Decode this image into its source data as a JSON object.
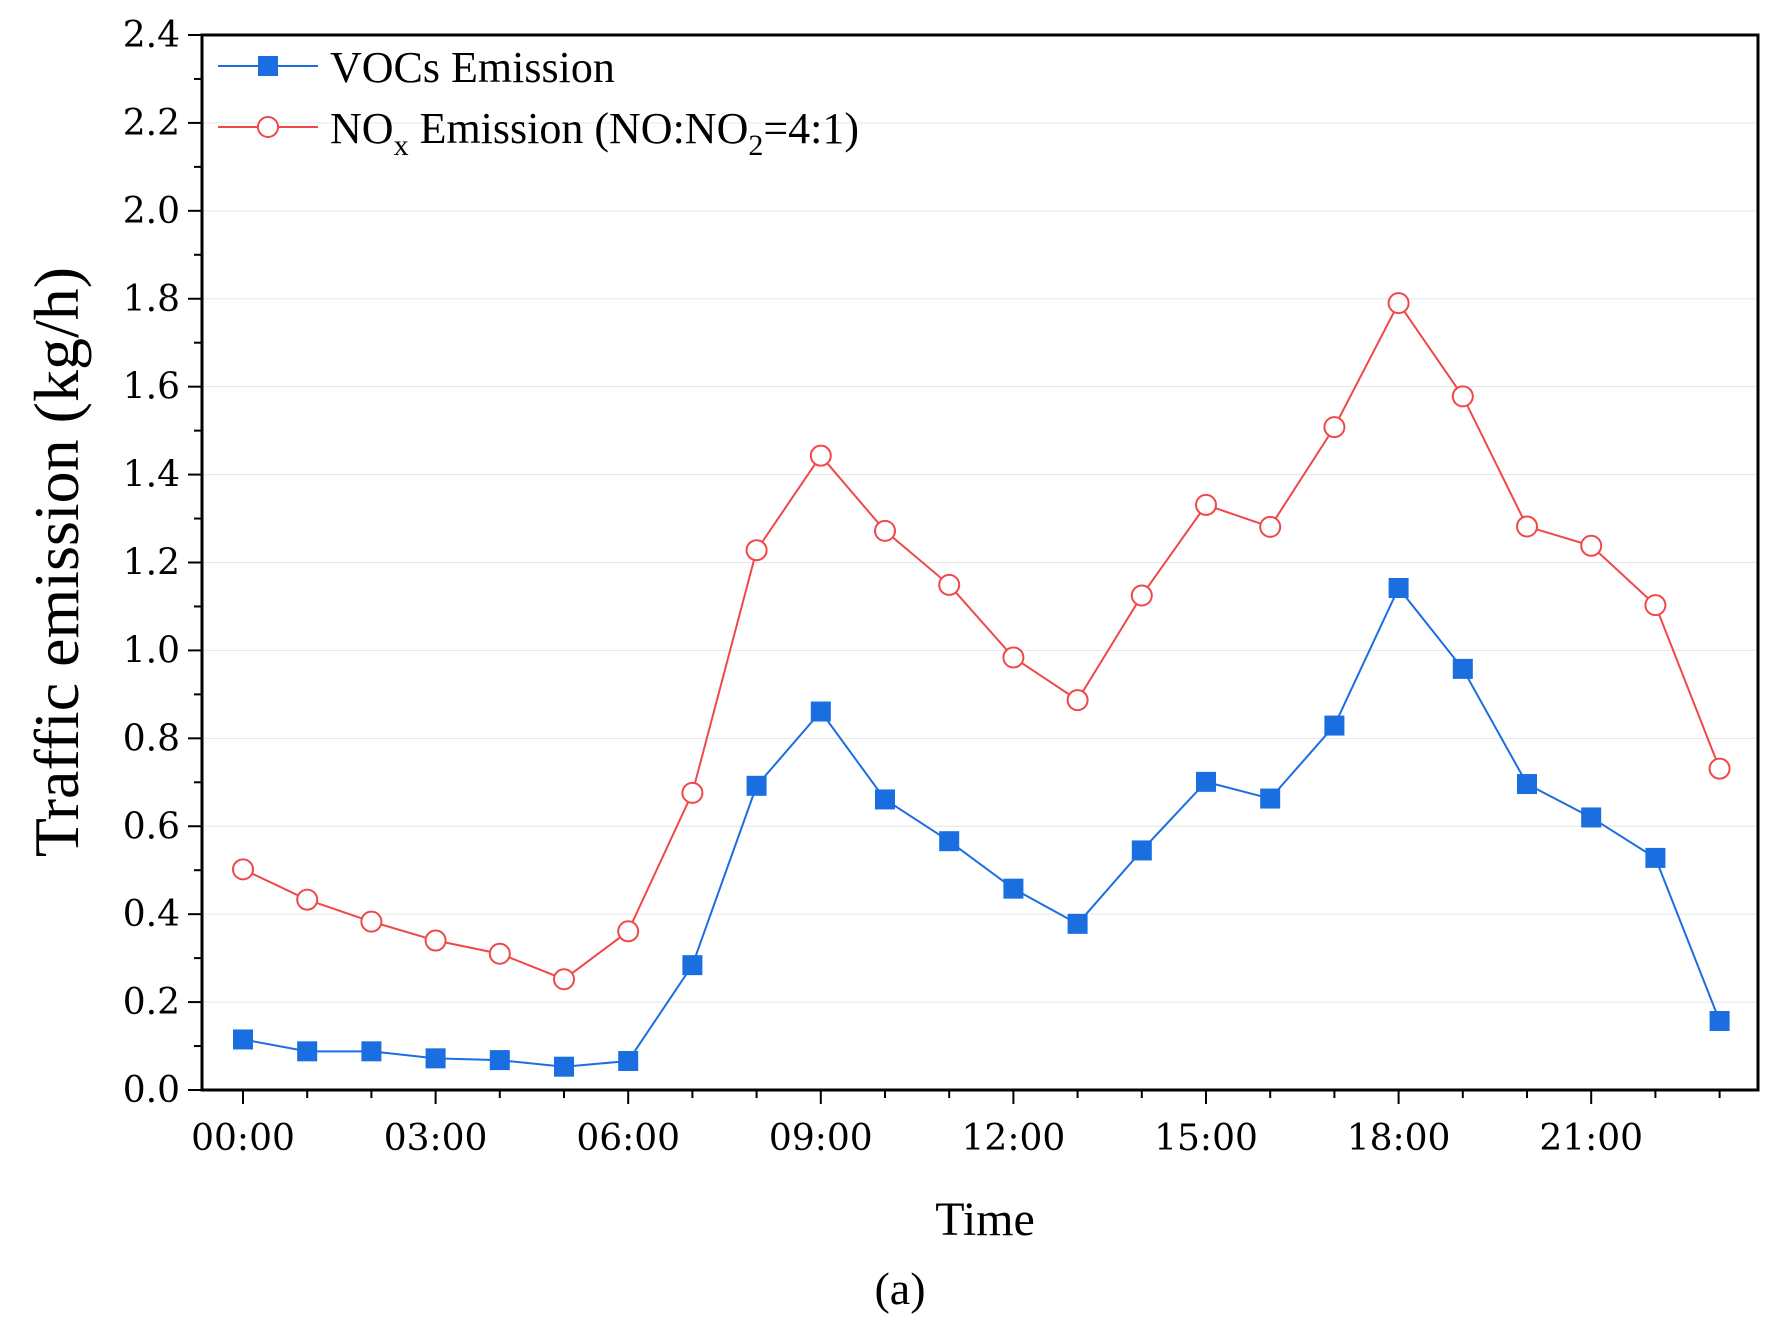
{
  "chart_data": {
    "type": "line",
    "xlabel": "Time",
    "ylabel": "Traffic emission (kg/h)",
    "caption": "(a)",
    "ylim": [
      0,
      2.4
    ],
    "yticks": [
      "0.0",
      "0.2",
      "0.4",
      "0.6",
      "0.8",
      "1.0",
      "1.2",
      "1.4",
      "1.6",
      "1.8",
      "2.0",
      "2.2",
      "2.4"
    ],
    "xlim": [
      -0.5,
      23.5
    ],
    "xticks": [
      {
        "hour": 0,
        "label": "00:00"
      },
      {
        "hour": 3,
        "label": "03:00"
      },
      {
        "hour": 6,
        "label": "06:00"
      },
      {
        "hour": 9,
        "label": "09:00"
      },
      {
        "hour": 12,
        "label": "12:00"
      },
      {
        "hour": 15,
        "label": "15:00"
      },
      {
        "hour": 18,
        "label": "18:00"
      },
      {
        "hour": 21,
        "label": "21:00"
      }
    ],
    "x": [
      0,
      1,
      2,
      3,
      4,
      5,
      6,
      7,
      8,
      9,
      10,
      11,
      12,
      13,
      14,
      15,
      16,
      17,
      18,
      19,
      20,
      21,
      22,
      23
    ],
    "series": [
      {
        "name": "VOCs Emission",
        "color": "#1a6ee0",
        "marker": "filled-square",
        "values": [
          0.115,
          0.088,
          0.088,
          0.072,
          0.068,
          0.053,
          0.066,
          0.284,
          0.692,
          0.861,
          0.661,
          0.566,
          0.458,
          0.378,
          0.545,
          0.701,
          0.663,
          0.829,
          1.142,
          0.958,
          0.696,
          0.62,
          0.528,
          0.157
        ]
      },
      {
        "name": "NOx Emission (NO:NO2=4:1)",
        "legend_parts": {
          "a": "NO",
          "b": "x",
          "c": " Emission (NO:NO",
          "d": "2",
          "e": "=4:1)"
        },
        "color": "#f0484a",
        "marker": "open-circle",
        "values": [
          0.502,
          0.433,
          0.383,
          0.34,
          0.31,
          0.252,
          0.361,
          0.676,
          1.228,
          1.443,
          1.272,
          1.149,
          0.984,
          0.887,
          1.125,
          1.331,
          1.281,
          1.508,
          1.79,
          1.578,
          1.282,
          1.238,
          1.103,
          0.731
        ]
      }
    ],
    "legend_position": "top-left"
  }
}
